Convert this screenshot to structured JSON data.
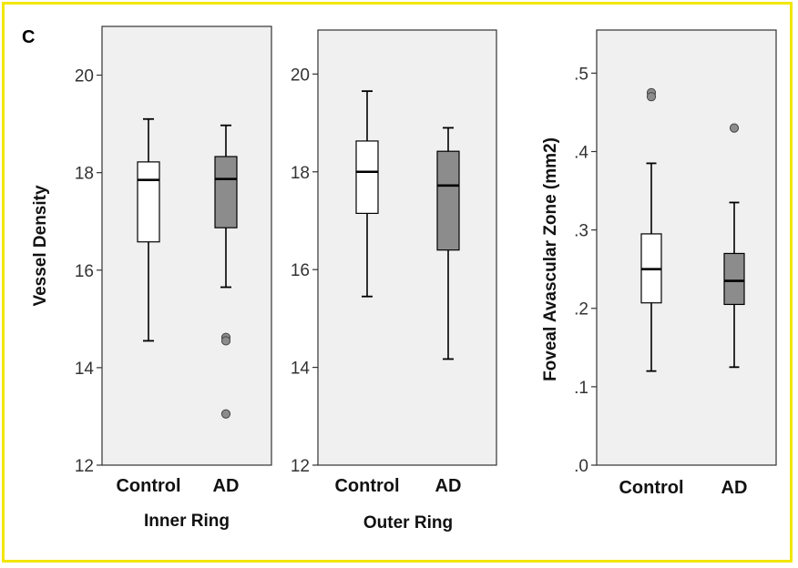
{
  "panel_label": "C",
  "colors": {
    "frame": "#f2e600",
    "plot_bg": "#f0f0f0",
    "control_fill": "#ffffff",
    "ad_fill": "#8c8c8c",
    "outlier_fill": "#8c8c8c"
  },
  "chart_data": [
    {
      "type": "boxplot",
      "xlabel": "Inner Ring",
      "ylabel": "Vessel Density",
      "ylim": [
        12,
        21
      ],
      "yticks": [
        12,
        14,
        16,
        18,
        20
      ],
      "ytick_labels": [
        "12",
        "14",
        "16",
        "18",
        "20"
      ],
      "categories": [
        "Control",
        "AD"
      ],
      "boxes": [
        {
          "group": "Control",
          "whisker_low": 14.55,
          "q1": 16.58,
          "median": 17.85,
          "q3": 18.22,
          "whisker_high": 19.1,
          "outliers": []
        },
        {
          "group": "AD",
          "whisker_low": 15.65,
          "q1": 16.87,
          "median": 17.87,
          "q3": 18.33,
          "whisker_high": 18.97,
          "outliers": [
            14.62,
            14.55,
            13.05
          ]
        }
      ]
    },
    {
      "type": "boxplot",
      "xlabel": "Outer Ring",
      "ylabel": "",
      "ylim": [
        12,
        20.9
      ],
      "yticks": [
        12,
        14,
        16,
        18,
        20
      ],
      "ytick_labels": [
        "12",
        "14",
        "16",
        "18",
        "20"
      ],
      "categories": [
        "Control",
        "AD"
      ],
      "boxes": [
        {
          "group": "Control",
          "whisker_low": 15.45,
          "q1": 17.15,
          "median": 18.0,
          "q3": 18.63,
          "whisker_high": 19.65,
          "outliers": []
        },
        {
          "group": "AD",
          "whisker_low": 14.17,
          "q1": 16.4,
          "median": 17.72,
          "q3": 18.42,
          "whisker_high": 18.9,
          "outliers": []
        }
      ]
    },
    {
      "type": "boxplot",
      "xlabel": "",
      "ylabel": "Foveal Avascular Zone (mm2)",
      "ylim": [
        0,
        0.555
      ],
      "yticks": [
        0,
        0.1,
        0.2,
        0.3,
        0.4,
        0.5
      ],
      "ytick_labels": [
        ".0",
        ".1",
        ".2",
        ".3",
        ".4",
        ".5"
      ],
      "categories": [
        "Control",
        "AD"
      ],
      "boxes": [
        {
          "group": "Control",
          "whisker_low": 0.12,
          "q1": 0.207,
          "median": 0.25,
          "q3": 0.295,
          "whisker_high": 0.385,
          "outliers": [
            0.475,
            0.47
          ]
        },
        {
          "group": "AD",
          "whisker_low": 0.125,
          "q1": 0.205,
          "median": 0.235,
          "q3": 0.27,
          "whisker_high": 0.335,
          "outliers": [
            0.43
          ]
        }
      ]
    }
  ]
}
